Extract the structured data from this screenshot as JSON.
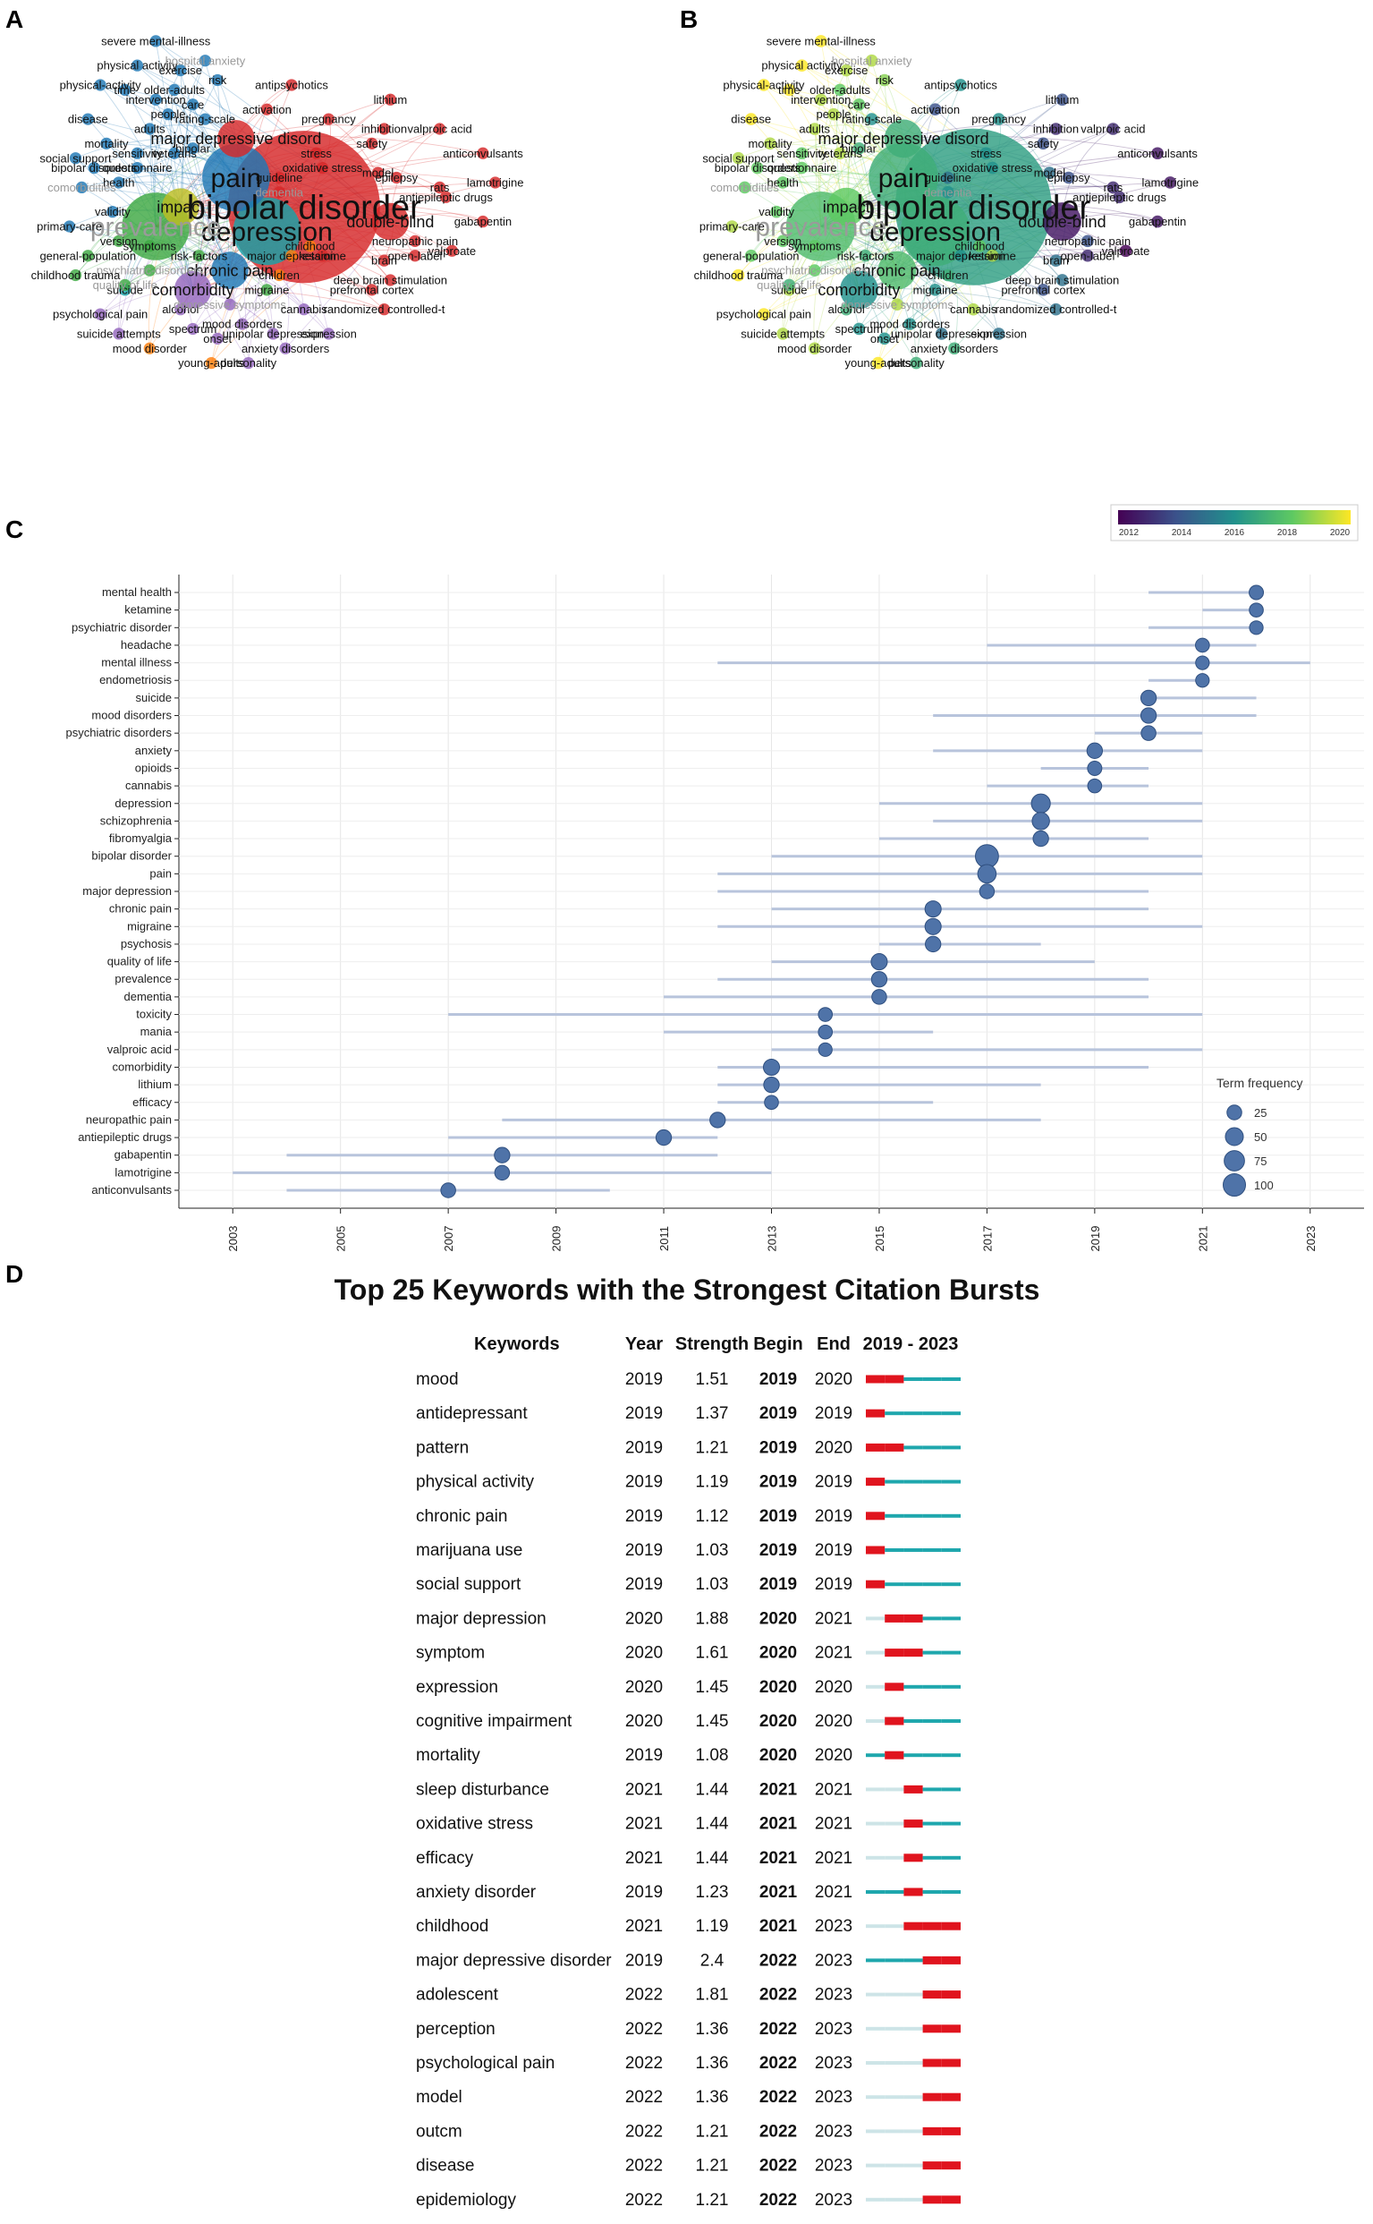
{
  "panels": {
    "a": "A",
    "b": "B",
    "c": "C",
    "d": "D"
  },
  "colors": {
    "red": "#d62728",
    "blue": "#1f77b4",
    "teal": "#17a2a8",
    "green": "#3ea843",
    "purple": "#9467bd",
    "orange": "#ff7f0e",
    "olive": "#bcbd22",
    "grey_text": "#999999",
    "dot": "#4f73a8",
    "bar": "#b8c4dc",
    "burst_red": "#e0141e",
    "burst_teal": "#1fa7ad",
    "burst_light": "#cde4e7"
  },
  "network_a": {
    "nodes": [
      {
        "label": "bipolar disorder",
        "group": "red",
        "size": "xl"
      },
      {
        "label": "depression",
        "group": "teal",
        "size": "l"
      },
      {
        "label": "pain",
        "group": "blue",
        "size": "l"
      },
      {
        "label": "prevalence",
        "group": "green",
        "size": "l",
        "faded": true
      },
      {
        "label": "impact",
        "group": "olive",
        "size": "m"
      },
      {
        "label": "double-blind",
        "group": "red",
        "size": "m"
      },
      {
        "label": "comorbidity",
        "group": "purple",
        "size": "m"
      },
      {
        "label": "chronic pain",
        "group": "blue",
        "size": "m"
      },
      {
        "label": "major depressive disord",
        "group": "red",
        "size": "m"
      },
      {
        "label": "antiepileptic drugs",
        "group": "red",
        "size": "s"
      },
      {
        "label": "neuropathic pain",
        "group": "red",
        "size": "s"
      },
      {
        "label": "epilepsy",
        "group": "red",
        "size": "s"
      },
      {
        "label": "lamotrigine",
        "group": "red",
        "size": "s"
      },
      {
        "label": "anticonvulsants",
        "group": "red",
        "size": "s"
      },
      {
        "label": "gabapentin",
        "group": "red",
        "size": "s"
      },
      {
        "label": "valproic acid",
        "group": "red",
        "size": "s"
      },
      {
        "label": "lithium",
        "group": "red",
        "size": "s"
      },
      {
        "label": "risk",
        "group": "blue",
        "size": "s"
      },
      {
        "label": "health",
        "group": "blue",
        "size": "s"
      },
      {
        "label": "symptoms",
        "group": "green",
        "size": "s"
      },
      {
        "label": "risk-factors",
        "group": "green",
        "size": "s"
      },
      {
        "label": "major depression",
        "group": "orange",
        "size": "s"
      },
      {
        "label": "migraine",
        "group": "green",
        "size": "s"
      },
      {
        "label": "mood disorders",
        "group": "purple",
        "size": "s"
      },
      {
        "label": "anxiety disorders",
        "group": "purple",
        "size": "s"
      },
      {
        "label": "randomized controlled-t",
        "group": "red",
        "size": "s"
      },
      {
        "label": "prefrontal cortex",
        "group": "red",
        "size": "s"
      },
      {
        "label": "deep brain stimulation",
        "group": "red",
        "size": "s"
      },
      {
        "label": "brain",
        "group": "red",
        "size": "s"
      },
      {
        "label": "children",
        "group": "orange",
        "size": "s"
      },
      {
        "label": "childhood",
        "group": "orange",
        "size": "s"
      },
      {
        "label": "suicide",
        "group": "teal",
        "size": "s"
      },
      {
        "label": "psychiatric-disorders",
        "group": "green",
        "size": "s",
        "faded": true
      },
      {
        "label": "validity",
        "group": "blue",
        "size": "s"
      },
      {
        "label": "primary-care",
        "group": "blue",
        "size": "s"
      },
      {
        "label": "general-population",
        "group": "green",
        "size": "s"
      },
      {
        "label": "childhood trauma",
        "group": "green",
        "size": "s"
      },
      {
        "label": "quality of life",
        "group": "green",
        "size": "s",
        "faded": true
      },
      {
        "label": "psychological pain",
        "group": "purple",
        "size": "s"
      },
      {
        "label": "alcohol",
        "group": "purple",
        "size": "s"
      },
      {
        "label": "suicide attempts",
        "group": "purple",
        "size": "s"
      },
      {
        "label": "spectrum",
        "group": "purple",
        "size": "s"
      },
      {
        "label": "onset",
        "group": "purple",
        "size": "s"
      },
      {
        "label": "unipolar depression",
        "group": "purple",
        "size": "s"
      },
      {
        "label": "expression",
        "group": "purple",
        "size": "s"
      },
      {
        "label": "mood disorder",
        "group": "orange",
        "size": "s"
      },
      {
        "label": "young-adults",
        "group": "orange",
        "size": "s"
      },
      {
        "label": "personality",
        "group": "purple",
        "size": "s"
      },
      {
        "label": "depressive symptoms",
        "group": "purple",
        "size": "s",
        "faded": true
      },
      {
        "label": "cannabis",
        "group": "purple",
        "size": "s"
      },
      {
        "label": "ketamine",
        "group": "red",
        "size": "s"
      },
      {
        "label": "open-label",
        "group": "red",
        "size": "s"
      },
      {
        "label": "valproate",
        "group": "red",
        "size": "s"
      },
      {
        "label": "model",
        "group": "red",
        "size": "s"
      },
      {
        "label": "rats",
        "group": "red",
        "size": "s"
      },
      {
        "label": "oxidative stress",
        "group": "red",
        "size": "s"
      },
      {
        "label": "stress",
        "group": "red",
        "size": "s"
      },
      {
        "label": "safety",
        "group": "red",
        "size": "s"
      },
      {
        "label": "inhibition",
        "group": "red",
        "size": "s"
      },
      {
        "label": "pregnancy",
        "group": "red",
        "size": "s"
      },
      {
        "label": "activation",
        "group": "red",
        "size": "s"
      },
      {
        "label": "guideline",
        "group": "red",
        "size": "s"
      },
      {
        "label": "antipsychotics",
        "group": "red",
        "size": "s"
      },
      {
        "label": "dementia",
        "group": "red",
        "size": "s",
        "faded": true
      },
      {
        "label": "rating-scale",
        "group": "blue",
        "size": "s"
      },
      {
        "label": "care",
        "group": "blue",
        "size": "s"
      },
      {
        "label": "people",
        "group": "blue",
        "size": "s"
      },
      {
        "label": "adults",
        "group": "blue",
        "size": "s"
      },
      {
        "label": "veterans",
        "group": "blue",
        "size": "s"
      },
      {
        "label": "bipolar",
        "group": "blue",
        "size": "s"
      },
      {
        "label": "older-adults",
        "group": "blue",
        "size": "s"
      },
      {
        "label": "intervention",
        "group": "blue",
        "size": "s"
      },
      {
        "label": "time",
        "group": "blue",
        "size": "s"
      },
      {
        "label": "physical activity",
        "group": "blue",
        "size": "s"
      },
      {
        "label": "physical-activity",
        "group": "blue",
        "size": "s"
      },
      {
        "label": "exercise",
        "group": "blue",
        "size": "s"
      },
      {
        "label": "hospital anxiety",
        "group": "blue",
        "size": "s",
        "faded": true
      },
      {
        "label": "severe mental-illness",
        "group": "blue",
        "size": "s"
      },
      {
        "label": "disease",
        "group": "blue",
        "size": "s"
      },
      {
        "label": "mortality",
        "group": "blue",
        "size": "s"
      },
      {
        "label": "social support",
        "group": "blue",
        "size": "s"
      },
      {
        "label": "bipolar disorders",
        "group": "blue",
        "size": "s"
      },
      {
        "label": "questionnaire",
        "group": "blue",
        "size": "s"
      },
      {
        "label": "comorbidities",
        "group": "blue",
        "size": "s",
        "faded": true
      },
      {
        "label": "version",
        "group": "green",
        "size": "s"
      },
      {
        "label": "sensitivity",
        "group": "blue",
        "size": "s"
      }
    ]
  },
  "network_b": {
    "colorbar": {
      "ticks": [
        "2012",
        "2014",
        "2016",
        "2018",
        "2020"
      ]
    }
  },
  "chart_data": [
    {
      "type": "timeline",
      "panel": "C",
      "x_ticks": [
        "2003",
        "2005",
        "2007",
        "2009",
        "2011",
        "2013",
        "2015",
        "2017",
        "2019",
        "2021",
        "2023"
      ],
      "xlim": [
        2002,
        2024
      ],
      "legend_title": "Term frequency",
      "legend_values": [
        25,
        50,
        75,
        100
      ],
      "legend_position": "bottom-right",
      "terms": [
        {
          "term": "mental health",
          "start": 2020,
          "end": 2022,
          "peak": 2022,
          "freq": 22
        },
        {
          "term": "ketamine",
          "start": 2021,
          "end": 2022,
          "peak": 2022,
          "freq": 20
        },
        {
          "term": "psychiatric disorder",
          "start": 2020,
          "end": 2022,
          "peak": 2022,
          "freq": 18
        },
        {
          "term": "headache",
          "start": 2017,
          "end": 2022,
          "peak": 2021,
          "freq": 20
        },
        {
          "term": "mental illness",
          "start": 2012,
          "end": 2023,
          "peak": 2021,
          "freq": 18
        },
        {
          "term": "endometriosis",
          "start": 2020,
          "end": 2021,
          "peak": 2021,
          "freq": 18
        },
        {
          "term": "suicide",
          "start": 2020,
          "end": 2022,
          "peak": 2020,
          "freq": 30
        },
        {
          "term": "mood disorders",
          "start": 2016,
          "end": 2022,
          "peak": 2020,
          "freq": 30
        },
        {
          "term": "psychiatric disorders",
          "start": 2019,
          "end": 2021,
          "peak": 2020,
          "freq": 25
        },
        {
          "term": "anxiety",
          "start": 2016,
          "end": 2021,
          "peak": 2019,
          "freq": 30
        },
        {
          "term": "opioids",
          "start": 2018,
          "end": 2020,
          "peak": 2019,
          "freq": 22
        },
        {
          "term": "cannabis",
          "start": 2017,
          "end": 2020,
          "peak": 2019,
          "freq": 20
        },
        {
          "term": "depression",
          "start": 2015,
          "end": 2021,
          "peak": 2018,
          "freq": 60
        },
        {
          "term": "schizophrenia",
          "start": 2016,
          "end": 2021,
          "peak": 2018,
          "freq": 45
        },
        {
          "term": "fibromyalgia",
          "start": 2015,
          "end": 2020,
          "peak": 2018,
          "freq": 30
        },
        {
          "term": "bipolar disorder",
          "start": 2013,
          "end": 2021,
          "peak": 2017,
          "freq": 110
        },
        {
          "term": "pain",
          "start": 2012,
          "end": 2021,
          "peak": 2017,
          "freq": 55
        },
        {
          "term": "major depression",
          "start": 2012,
          "end": 2020,
          "peak": 2017,
          "freq": 25
        },
        {
          "term": "chronic pain",
          "start": 2013,
          "end": 2020,
          "peak": 2016,
          "freq": 35
        },
        {
          "term": "migraine",
          "start": 2012,
          "end": 2021,
          "peak": 2016,
          "freq": 35
        },
        {
          "term": "psychosis",
          "start": 2015,
          "end": 2018,
          "peak": 2016,
          "freq": 30
        },
        {
          "term": "quality of life",
          "start": 2013,
          "end": 2019,
          "peak": 2015,
          "freq": 35
        },
        {
          "term": "prevalence",
          "start": 2012,
          "end": 2020,
          "peak": 2015,
          "freq": 30
        },
        {
          "term": "dementia",
          "start": 2011,
          "end": 2020,
          "peak": 2015,
          "freq": 25
        },
        {
          "term": "toxicity",
          "start": 2007,
          "end": 2021,
          "peak": 2014,
          "freq": 20
        },
        {
          "term": "mania",
          "start": 2011,
          "end": 2016,
          "peak": 2014,
          "freq": 20
        },
        {
          "term": "valproic acid",
          "start": 2013,
          "end": 2021,
          "peak": 2014,
          "freq": 18
        },
        {
          "term": "comorbidity",
          "start": 2012,
          "end": 2020,
          "peak": 2013,
          "freq": 35
        },
        {
          "term": "lithium",
          "start": 2012,
          "end": 2018,
          "peak": 2013,
          "freq": 30
        },
        {
          "term": "efficacy",
          "start": 2012,
          "end": 2016,
          "peak": 2013,
          "freq": 20
        },
        {
          "term": "neuropathic pain",
          "start": 2008,
          "end": 2018,
          "peak": 2012,
          "freq": 30
        },
        {
          "term": "antiepileptic drugs",
          "start": 2007,
          "end": 2012,
          "peak": 2011,
          "freq": 30
        },
        {
          "term": "gabapentin",
          "start": 2004,
          "end": 2012,
          "peak": 2008,
          "freq": 30
        },
        {
          "term": "lamotrigine",
          "start": 2003,
          "end": 2013,
          "peak": 2008,
          "freq": 25
        },
        {
          "term": "anticonvulsants",
          "start": 2004,
          "end": 2010,
          "peak": 2007,
          "freq": 25
        }
      ]
    },
    {
      "type": "table",
      "panel": "D",
      "title": "Top 25 Keywords with the Strongest Citation Bursts",
      "columns": [
        "Keywords",
        "Year",
        "Strength",
        "Begin",
        "End",
        "2019 - 2023"
      ],
      "range": [
        2019,
        2023
      ],
      "rows": [
        {
          "keyword": "mood",
          "year": "2019",
          "strength": "1.51",
          "begin": "2019",
          "end": "2020"
        },
        {
          "keyword": "antidepressant",
          "year": "2019",
          "strength": "1.37",
          "begin": "2019",
          "end": "2019"
        },
        {
          "keyword": "pattern",
          "year": "2019",
          "strength": "1.21",
          "begin": "2019",
          "end": "2020"
        },
        {
          "keyword": "physical activity",
          "year": "2019",
          "strength": "1.19",
          "begin": "2019",
          "end": "2019"
        },
        {
          "keyword": "chronic pain",
          "year": "2019",
          "strength": "1.12",
          "begin": "2019",
          "end": "2019"
        },
        {
          "keyword": "marijuana use",
          "year": "2019",
          "strength": "1.03",
          "begin": "2019",
          "end": "2019"
        },
        {
          "keyword": "social support",
          "year": "2019",
          "strength": "1.03",
          "begin": "2019",
          "end": "2019"
        },
        {
          "keyword": "major depression",
          "year": "2020",
          "strength": "1.88",
          "begin": "2020",
          "end": "2021"
        },
        {
          "keyword": "symptom",
          "year": "2020",
          "strength": "1.61",
          "begin": "2020",
          "end": "2021"
        },
        {
          "keyword": "expression",
          "year": "2020",
          "strength": "1.45",
          "begin": "2020",
          "end": "2020"
        },
        {
          "keyword": "cognitive impairment",
          "year": "2020",
          "strength": "1.45",
          "begin": "2020",
          "end": "2020"
        },
        {
          "keyword": "mortality",
          "year": "2019",
          "strength": "1.08",
          "begin": "2020",
          "end": "2020"
        },
        {
          "keyword": "sleep disturbance",
          "year": "2021",
          "strength": "1.44",
          "begin": "2021",
          "end": "2021"
        },
        {
          "keyword": "oxidative stress",
          "year": "2021",
          "strength": "1.44",
          "begin": "2021",
          "end": "2021"
        },
        {
          "keyword": "efficacy",
          "year": "2021",
          "strength": "1.44",
          "begin": "2021",
          "end": "2021"
        },
        {
          "keyword": "anxiety disorder",
          "year": "2019",
          "strength": "1.23",
          "begin": "2021",
          "end": "2021"
        },
        {
          "keyword": "childhood",
          "year": "2021",
          "strength": "1.19",
          "begin": "2021",
          "end": "2023"
        },
        {
          "keyword": "major depressive disorder",
          "year": "2019",
          "strength": "2.4",
          "begin": "2022",
          "end": "2023"
        },
        {
          "keyword": "adolescent",
          "year": "2022",
          "strength": "1.81",
          "begin": "2022",
          "end": "2023"
        },
        {
          "keyword": "perception",
          "year": "2022",
          "strength": "1.36",
          "begin": "2022",
          "end": "2023"
        },
        {
          "keyword": "psychological pain",
          "year": "2022",
          "strength": "1.36",
          "begin": "2022",
          "end": "2023"
        },
        {
          "keyword": "model",
          "year": "2022",
          "strength": "1.36",
          "begin": "2022",
          "end": "2023"
        },
        {
          "keyword": "outcm",
          "year": "2022",
          "strength": "1.21",
          "begin": "2022",
          "end": "2023"
        },
        {
          "keyword": "disease",
          "year": "2022",
          "strength": "1.21",
          "begin": "2022",
          "end": "2023"
        },
        {
          "keyword": "epidemiology",
          "year": "2022",
          "strength": "1.21",
          "begin": "2022",
          "end": "2023"
        }
      ]
    }
  ]
}
